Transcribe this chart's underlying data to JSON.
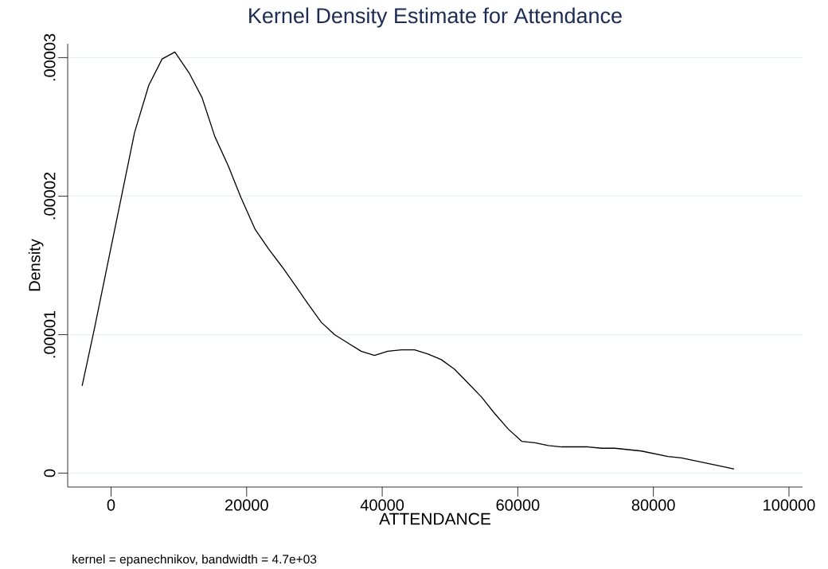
{
  "chart_data": {
    "type": "line",
    "title": "Kernel Density Estimate for Attendance",
    "xlabel": "ATTENDANCE",
    "ylabel": "Density",
    "annotations": [
      "kernel = epanechnikov, bandwidth =  4.7e+03"
    ],
    "x": [
      -4270,
      -2470,
      -510,
      1590,
      3470,
      5560,
      7530,
      9410,
      11510,
      13430,
      15310,
      17280,
      19160,
      21250,
      23220,
      25230,
      27110,
      29080,
      31000,
      32970,
      34930,
      36890,
      38850,
      40810,
      42820,
      44780,
      46750,
      48710,
      50670,
      52680,
      54640,
      56600,
      58560,
      60570,
      62540,
      64500,
      66460,
      68420,
      70380,
      72340,
      74310,
      76270,
      78230,
      80190,
      82150,
      84110,
      86080,
      88040,
      90000,
      91910
    ],
    "values": [
      6.3e-06,
      1.04e-05,
      1.51e-05,
      2.01e-05,
      2.46e-05,
      2.8e-05,
      2.99e-05,
      3.04e-05,
      2.89e-05,
      2.71e-05,
      2.43e-05,
      2.22e-05,
      1.99e-05,
      1.76e-05,
      1.62e-05,
      1.49e-05,
      1.36e-05,
      1.22e-05,
      1.09e-05,
      1e-05,
      9.4e-06,
      8.8e-06,
      8.5e-06,
      8.8e-06,
      8.9e-06,
      8.9e-06,
      8.6e-06,
      8.2e-06,
      7.5e-06,
      6.5e-06,
      5.5e-06,
      4.3e-06,
      3.2e-06,
      2.3e-06,
      2.2e-06,
      2e-06,
      1.9e-06,
      1.9e-06,
      1.9e-06,
      1.8e-06,
      1.8e-06,
      1.7e-06,
      1.6e-06,
      1.4e-06,
      1.2e-06,
      1.1e-06,
      9e-07,
      7e-07,
      5e-07,
      3e-07
    ],
    "color": "#000000",
    "xlim": [
      -6400,
      102000
    ],
    "ylim": [
      -1e-06,
      3.1e-05
    ],
    "xticks": [
      0,
      20000,
      40000,
      60000,
      80000,
      100000
    ],
    "yticks": [
      {
        "value": 0,
        "label": "0"
      },
      {
        "value": 1e-05,
        "label": ".00001"
      },
      {
        "value": 2e-05,
        "label": ".00002"
      },
      {
        "value": 3e-05,
        "label": ".00003"
      }
    ],
    "grid": "y"
  }
}
